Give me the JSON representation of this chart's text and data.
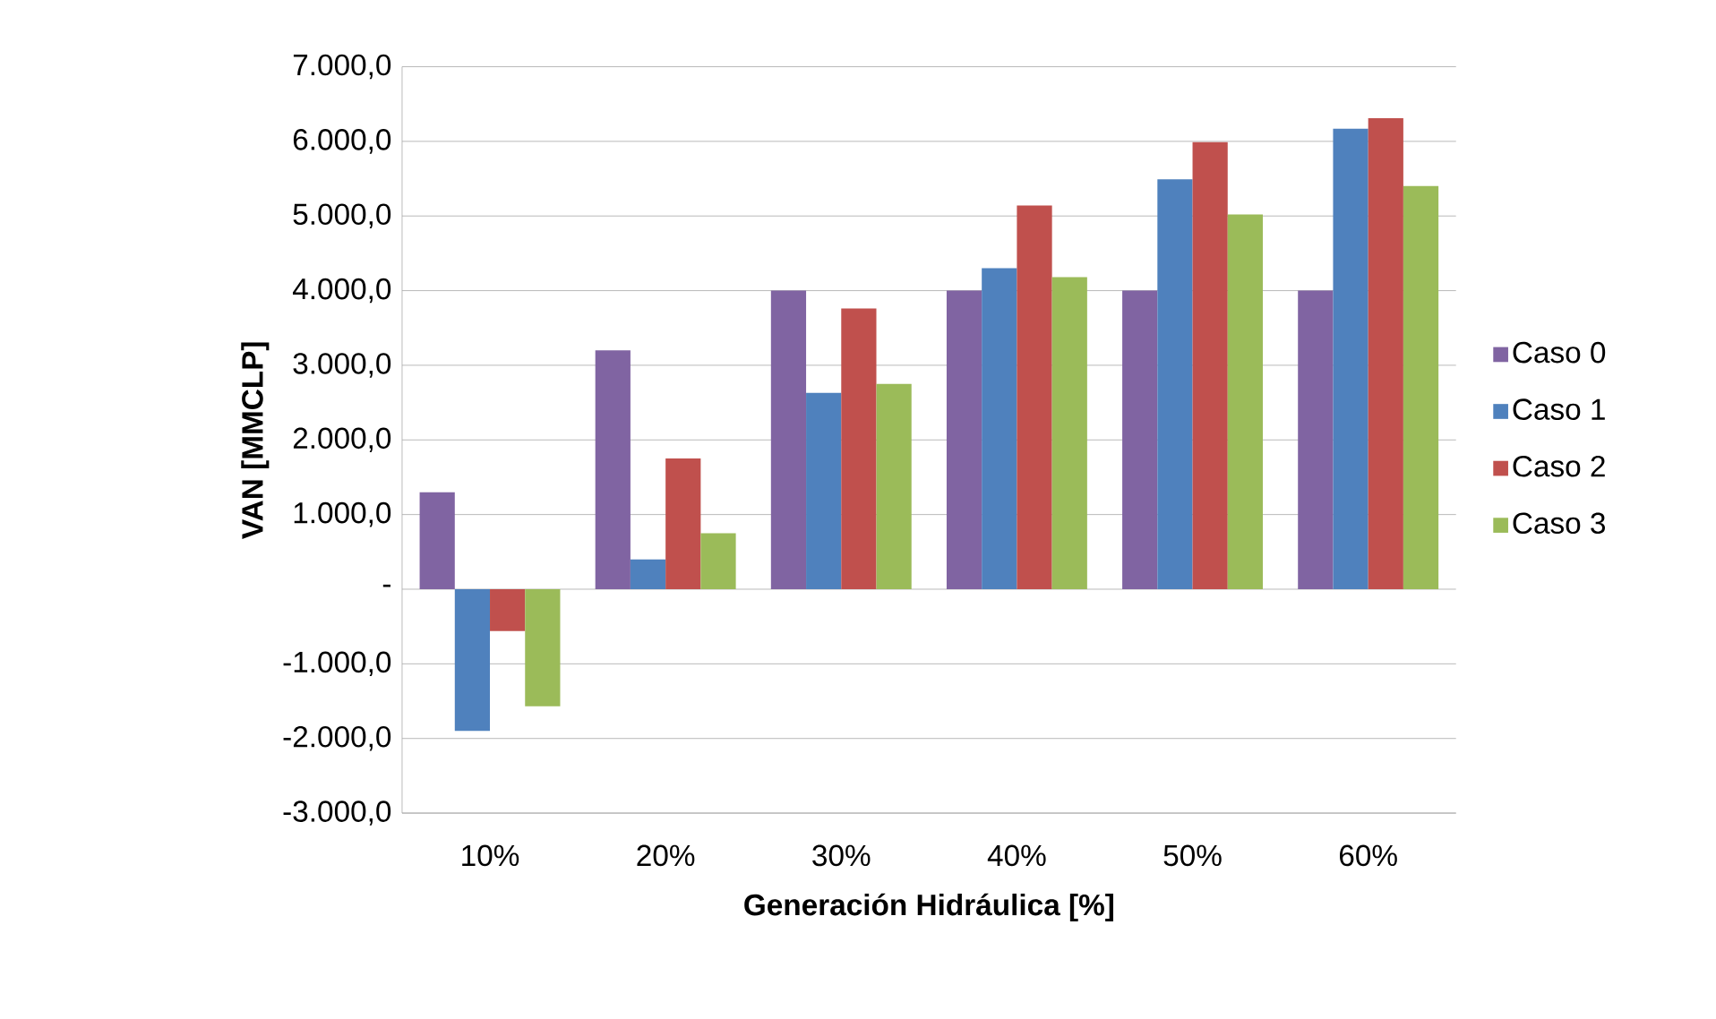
{
  "chart_data": {
    "type": "bar",
    "xlabel": "Generación Hidráulica [%]",
    "ylabel": "VAN [MMCLP]",
    "categories": [
      "10%",
      "20%",
      "30%",
      "40%",
      "50%",
      "60%"
    ],
    "series": [
      {
        "name": "Caso 0",
        "color": "#8064a2",
        "values": [
          1300,
          3200,
          4000,
          4000,
          4000,
          4000
        ]
      },
      {
        "name": "Caso 1",
        "color": "#4f81bd",
        "values": [
          -1900,
          400,
          2630,
          4300,
          5490,
          6170
        ]
      },
      {
        "name": "Caso 2",
        "color": "#c0504d",
        "values": [
          -560,
          1750,
          3760,
          5140,
          5990,
          6310
        ]
      },
      {
        "name": "Caso 3",
        "color": "#9bbb59",
        "values": [
          -1570,
          750,
          2750,
          4180,
          5020,
          5400
        ]
      }
    ],
    "ylim": [
      -3000,
      7000
    ],
    "yticks": [
      {
        "value": -3000,
        "label": "-3.000,0"
      },
      {
        "value": -2000,
        "label": "-2.000,0"
      },
      {
        "value": -1000,
        "label": "-1.000,0"
      },
      {
        "value": 0,
        "label": "-"
      },
      {
        "value": 1000,
        "label": "1.000,0"
      },
      {
        "value": 2000,
        "label": "2.000,0"
      },
      {
        "value": 3000,
        "label": "3.000,0"
      },
      {
        "value": 4000,
        "label": "4.000,0"
      },
      {
        "value": 5000,
        "label": "5.000,0"
      },
      {
        "value": 6000,
        "label": "6.000,0"
      },
      {
        "value": 7000,
        "label": "7.000,0"
      }
    ],
    "grid": "y",
    "legend": "right"
  }
}
